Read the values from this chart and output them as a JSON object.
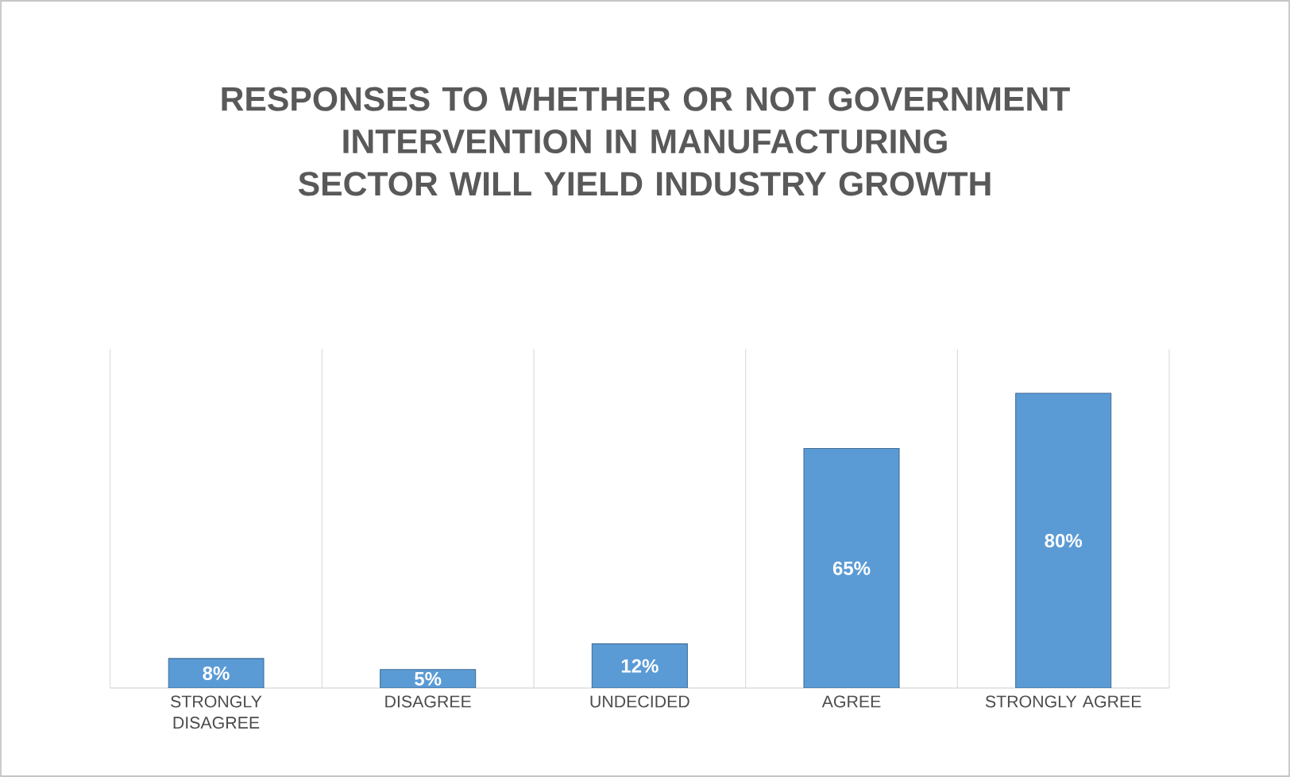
{
  "chart_data": {
    "type": "bar",
    "title": "RESPONSES TO WHETHER OR NOT GOVERNMENT INTERVENTION IN MANUFACTURING SECTOR WILL YIELD INDUSTRY GROWTH",
    "categories": [
      "STRONGLY DISAGREE",
      "DISAGREE",
      "UNDECIDED",
      "AGREE",
      "STRONGLY AGREE"
    ],
    "values": [
      8,
      5,
      12,
      65,
      80
    ],
    "value_labels": [
      "8%",
      "5%",
      "12%",
      "65%",
      "80%"
    ],
    "color": "#5b9bd5",
    "ylim": [
      0,
      92
    ],
    "grid": "x",
    "tick_labels": "x"
  }
}
